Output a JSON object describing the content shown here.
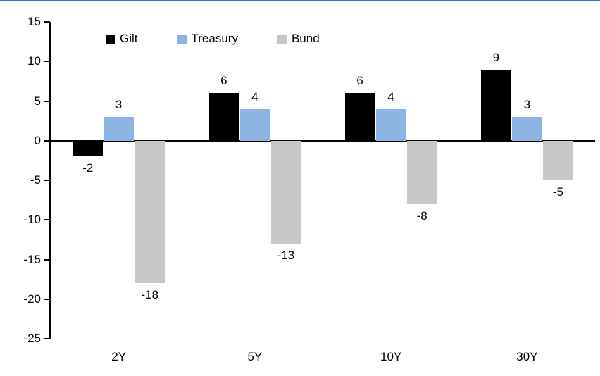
{
  "accent_rule_color": "#2e74c4",
  "chart_data": {
    "type": "bar",
    "categories": [
      "2Y",
      "5Y",
      "10Y",
      "30Y"
    ],
    "series": [
      {
        "name": "Gilt",
        "color": "#000000",
        "values": [
          -2,
          6,
          6,
          9
        ]
      },
      {
        "name": "Treasury",
        "color": "#8db3e2",
        "values": [
          3,
          4,
          4,
          3
        ]
      },
      {
        "name": "Bund",
        "color": "#c8c8c8",
        "values": [
          -18,
          -13,
          -8,
          -5
        ]
      }
    ],
    "title": "",
    "xlabel": "",
    "ylabel": "",
    "ylim": [
      -25,
      15
    ],
    "yticks": [
      15,
      10,
      5,
      0,
      -5,
      -10,
      -15,
      -20,
      -25
    ],
    "grid": false,
    "data_labels": true,
    "legend_position": "top"
  }
}
